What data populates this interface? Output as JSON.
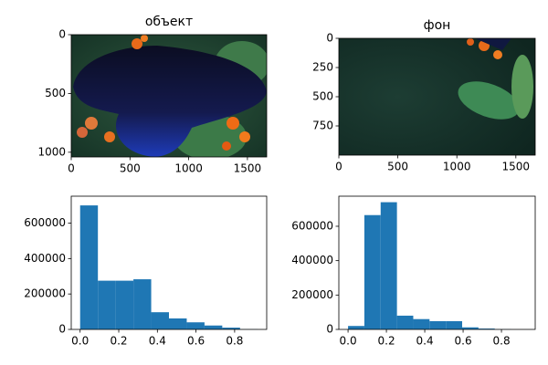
{
  "chart_data": [
    {
      "type": "image",
      "title": "объект",
      "xlim": [
        0,
        1664
      ],
      "ylim": [
        1040,
        0
      ],
      "xticks": [
        0,
        500,
        1000,
        1500
      ],
      "yticks": [
        0,
        500,
        1000
      ]
    },
    {
      "type": "image",
      "title": "фон",
      "xlim": [
        0,
        1664
      ],
      "ylim": [
        1000,
        0
      ],
      "xticks": [
        0,
        500,
        1000,
        1500
      ],
      "yticks": [
        0,
        250,
        500,
        750
      ]
    },
    {
      "type": "histogram",
      "color": "#1f77b4",
      "bins": [
        0,
        0.092,
        0.184,
        0.276,
        0.368,
        0.46,
        0.552,
        0.644,
        0.736,
        0.828,
        0.92
      ],
      "values": [
        700000,
        275000,
        275000,
        283000,
        97000,
        62000,
        40000,
        22000,
        10000,
        1000
      ],
      "xlim": [
        -0.046,
        0.966
      ],
      "ylim": [
        0,
        752000
      ],
      "xticks": [
        {
          "value": 0,
          "label": "0.0"
        },
        {
          "value": 0.2,
          "label": "0.2"
        },
        {
          "value": 0.4,
          "label": "0.4"
        },
        {
          "value": 0.6,
          "label": "0.6"
        },
        {
          "value": 0.8,
          "label": "0.8"
        }
      ],
      "yticks": [
        0,
        200000,
        400000,
        600000
      ]
    },
    {
      "type": "histogram",
      "color": "#1f77b4",
      "bins": [
        0,
        0.085,
        0.17,
        0.255,
        0.34,
        0.425,
        0.51,
        0.595,
        0.68,
        0.765,
        0.85
      ],
      "values": [
        20000,
        665000,
        740000,
        80000,
        60000,
        48000,
        48000,
        12000,
        5000,
        1000
      ],
      "xlim": [
        -0.048,
        0.976
      ],
      "ylim": [
        0,
        775000
      ],
      "xticks": [
        {
          "value": 0,
          "label": "0.0"
        },
        {
          "value": 0.2,
          "label": "0.2"
        },
        {
          "value": 0.4,
          "label": "0.4"
        },
        {
          "value": 0.6,
          "label": "0.6"
        },
        {
          "value": 0.8,
          "label": "0.8"
        }
      ],
      "yticks": [
        0,
        200000,
        400000,
        600000
      ]
    }
  ]
}
